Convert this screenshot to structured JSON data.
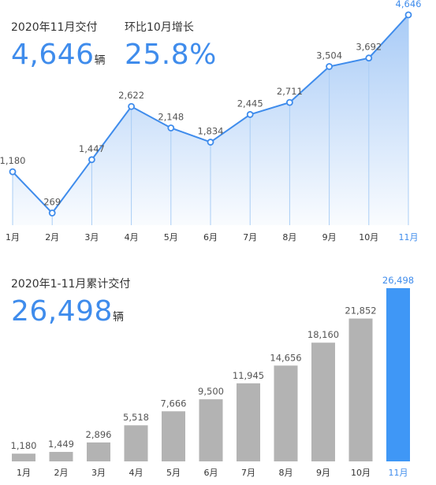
{
  "summary_top": {
    "delivery_label": "2020年11月交付",
    "delivery_value": "4,646",
    "delivery_unit": "辆",
    "growth_label": "环比10月增长",
    "growth_value": "25.8%"
  },
  "summary_bottom": {
    "cumulative_label": "2020年1-11月累计交付",
    "cumulative_value": "26,498",
    "cumulative_unit": "辆"
  },
  "colors": {
    "accent": "#3f8cec",
    "bar_gray": "#b3b3b3",
    "bar_highlight": "#3f97f6",
    "text": "#333333",
    "muted_text": "#555555"
  },
  "chart_data": [
    {
      "type": "area",
      "categories": [
        "1月",
        "2月",
        "3月",
        "4月",
        "5月",
        "6月",
        "7月",
        "8月",
        "9月",
        "10月",
        "11月"
      ],
      "series": [
        {
          "values": [
            1180,
            269,
            1447,
            2622,
            2148,
            1834,
            2445,
            2711,
            3504,
            3692,
            4646
          ],
          "labels": [
            "1,180",
            "269",
            "1,447",
            "2,622",
            "2,148",
            "1,834",
            "2,445",
            "2,711",
            "3,504",
            "3,692",
            "4,646"
          ]
        }
      ],
      "highlight_index": 10,
      "ylim": [
        0,
        4800
      ],
      "grid": false,
      "legend": "none"
    },
    {
      "type": "bar",
      "categories": [
        "1月",
        "2月",
        "3月",
        "4月",
        "5月",
        "6月",
        "7月",
        "8月",
        "9月",
        "10月",
        "11月"
      ],
      "values": [
        1180,
        1449,
        2896,
        5518,
        7666,
        9500,
        11945,
        14656,
        18160,
        21852,
        26498
      ],
      "labels": [
        "1,180",
        "1,449",
        "2,896",
        "5,518",
        "7,666",
        "9,500",
        "11,945",
        "14,656",
        "18,160",
        "21,852",
        "26,498"
      ],
      "highlight_index": 10,
      "ylim": [
        0,
        26498
      ],
      "grid": false,
      "legend": "none"
    }
  ]
}
